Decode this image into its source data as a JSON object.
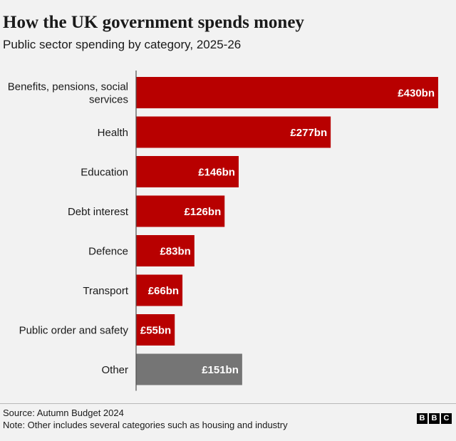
{
  "title": "How the UK government spends money",
  "subtitle": "Public sector spending by category, 2025-26",
  "source": "Source: Autumn Budget 2024",
  "note": "Note: Other includes several categories such as housing and industry",
  "logo": {
    "letters": [
      "B",
      "B",
      "C"
    ]
  },
  "colors": {
    "primary_bar": "#b80000",
    "other_bar": "#757575",
    "axis": "#505050",
    "bar_label": "#ffffff",
    "category_label": "#1a1a1a"
  },
  "chart_data": {
    "type": "bar",
    "orientation": "horizontal",
    "title": "How the UK government spends money",
    "subtitle": "Public sector spending by category, 2025-26",
    "xlabel": "",
    "ylabel": "",
    "unit": "£bn",
    "xlim": [
      0,
      430
    ],
    "grid": false,
    "categories": [
      "Benefits, pensions, social services",
      "Health",
      "Education",
      "Debt interest",
      "Defence",
      "Transport",
      "Public order and safety",
      "Other"
    ],
    "category_lines": [
      [
        "Benefits, pensions, social",
        "services"
      ],
      [
        "Health"
      ],
      [
        "Education"
      ],
      [
        "Debt interest"
      ],
      [
        "Defence"
      ],
      [
        "Transport"
      ],
      [
        "Public order and safety"
      ],
      [
        "Other"
      ]
    ],
    "values": [
      430,
      277,
      146,
      126,
      83,
      66,
      55,
      151
    ],
    "value_labels": [
      "£430bn",
      "£277bn",
      "£146bn",
      "£126bn",
      "£83bn",
      "£66bn",
      "£55bn",
      "£151bn"
    ],
    "highlight": [
      "primary",
      "primary",
      "primary",
      "primary",
      "primary",
      "primary",
      "primary",
      "other"
    ]
  }
}
